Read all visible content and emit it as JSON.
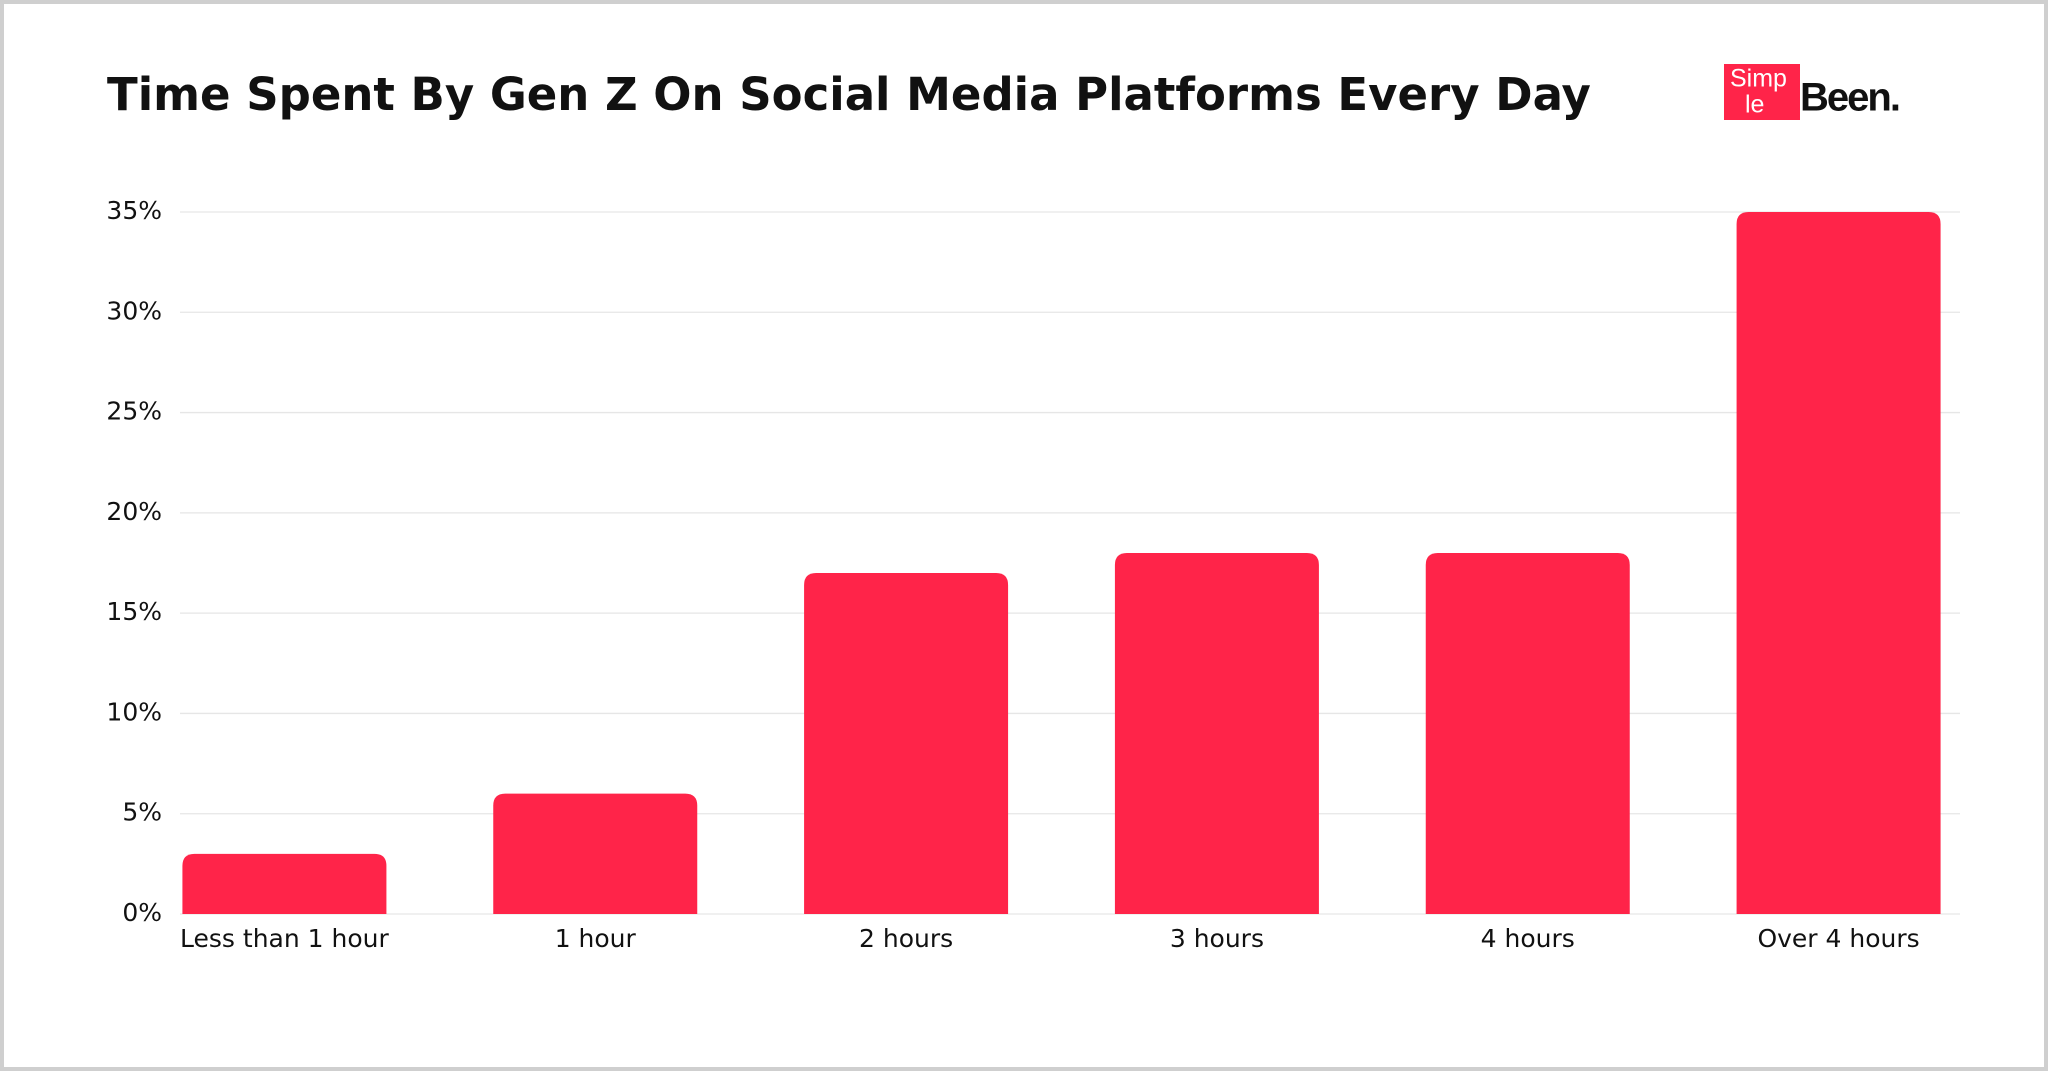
{
  "chart_data": {
    "type": "bar",
    "title": "Time Spent By Gen Z On Social Media Platforms Every Day",
    "categories": [
      "Less than 1 hour",
      "1 hour",
      "2 hours",
      "3 hours",
      "4 hours",
      "Over 4 hours"
    ],
    "values": [
      3,
      6,
      17,
      18,
      18,
      35
    ],
    "color": "#ff2449",
    "ylim": [
      0,
      35
    ],
    "yticks": [
      {
        "value": 0,
        "label": "0%"
      },
      {
        "value": 5,
        "label": "5%"
      },
      {
        "value": 10,
        "label": "10%"
      },
      {
        "value": 15,
        "label": "15%"
      },
      {
        "value": 20,
        "label": "20%"
      },
      {
        "value": 25,
        "label": "25%"
      },
      {
        "value": 30,
        "label": "30%"
      },
      {
        "value": 35,
        "label": "35%"
      }
    ],
    "grid": true
  },
  "logo": {
    "first": "Simp",
    "second": "le",
    "third": "Been."
  }
}
